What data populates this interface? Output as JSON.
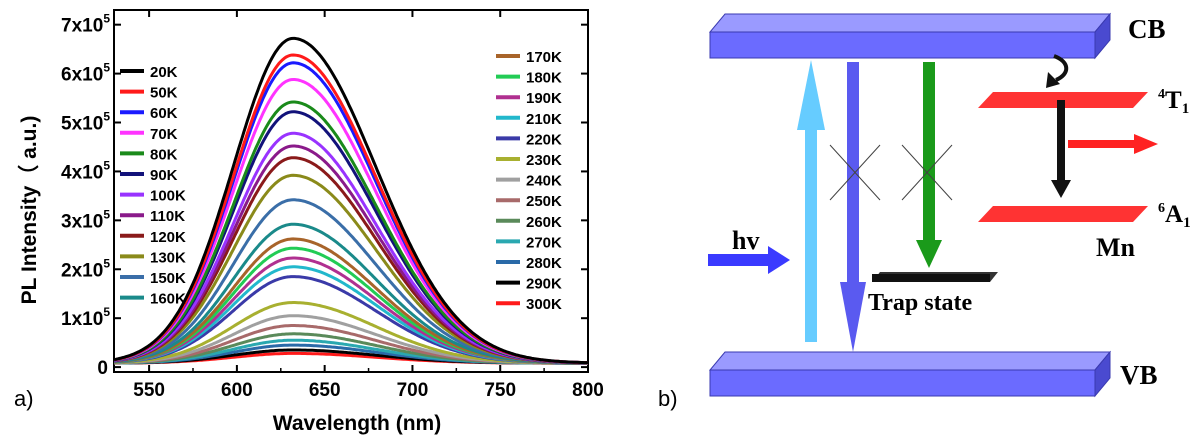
{
  "panel_a_label": "a)",
  "panel_b_label": "b)",
  "chart_data": {
    "type": "line",
    "xlabel": "Wavelength (nm)",
    "ylabel": "PL Intensity（ a.u.)",
    "xlim": [
      530,
      800
    ],
    "ylim": [
      -10000,
      730000
    ],
    "x_ticks": [
      550,
      600,
      650,
      700,
      750,
      800
    ],
    "y_ticks": [
      {
        "value": 0,
        "label": "0",
        "exp": ""
      },
      {
        "value": 100000,
        "label": "1x10",
        "exp": "5"
      },
      {
        "value": 200000,
        "label": "2x10",
        "exp": "5"
      },
      {
        "value": 300000,
        "label": "3x10",
        "exp": "5"
      },
      {
        "value": 400000,
        "label": "4x10",
        "exp": "5"
      },
      {
        "value": 500000,
        "label": "5x10",
        "exp": "5"
      },
      {
        "value": 600000,
        "label": "6x10",
        "exp": "5"
      },
      {
        "value": 700000,
        "label": "7x10",
        "exp": "5"
      }
    ],
    "peak_wavelength": 632,
    "baseline": 8000,
    "series": [
      {
        "name": "20K",
        "peak": 672000,
        "color": "#000000"
      },
      {
        "name": "50K",
        "peak": 638000,
        "color": "#ff1a1a"
      },
      {
        "name": "60K",
        "peak": 622000,
        "color": "#1a1aff"
      },
      {
        "name": "70K",
        "peak": 588000,
        "color": "#ff33ff"
      },
      {
        "name": "80K",
        "peak": 542000,
        "color": "#1a8a1a"
      },
      {
        "name": "90K",
        "peak": 522000,
        "color": "#12127a"
      },
      {
        "name": "100K",
        "peak": 478000,
        "color": "#9933ff"
      },
      {
        "name": "110K",
        "peak": 452000,
        "color": "#8a1a8a"
      },
      {
        "name": "120K",
        "peak": 428000,
        "color": "#8a1a1a"
      },
      {
        "name": "130K",
        "peak": 392000,
        "color": "#8a8a1a"
      },
      {
        "name": "150K",
        "peak": 342000,
        "color": "#3a6ea8"
      },
      {
        "name": "160K",
        "peak": 292000,
        "color": "#1a8a8a"
      },
      {
        "name": "170K",
        "peak": 262000,
        "color": "#a8642a"
      },
      {
        "name": "180K",
        "peak": 243000,
        "color": "#22cc55"
      },
      {
        "name": "190K",
        "peak": 223000,
        "color": "#b03090"
      },
      {
        "name": "210K",
        "peak": 205000,
        "color": "#22b8cc"
      },
      {
        "name": "220K",
        "peak": 185000,
        "color": "#3a3aa8"
      },
      {
        "name": "230K",
        "peak": 132000,
        "color": "#a8b030"
      },
      {
        "name": "240K",
        "peak": 105000,
        "color": "#a0a0a0"
      },
      {
        "name": "250K",
        "peak": 85000,
        "color": "#a86a6a"
      },
      {
        "name": "260K",
        "peak": 68000,
        "color": "#5a8a5a"
      },
      {
        "name": "270K",
        "peak": 55000,
        "color": "#2aa8b0"
      },
      {
        "name": "280K",
        "peak": 45000,
        "color": "#2a6aa8"
      },
      {
        "name": "290K",
        "peak": 35000,
        "color": "#000000"
      },
      {
        "name": "300K",
        "peak": 28000,
        "color": "#ff1a1a"
      }
    ]
  },
  "diagram": {
    "cb": "CB",
    "vb": "VB",
    "hv": "hv",
    "trap": "Trap state",
    "t1_sup": "4",
    "t1_main": "T",
    "t1_sub": "1",
    "a1_sup": "6",
    "a1_main": "A",
    "a1_sub": "1",
    "mn": "Mn",
    "colors": {
      "band": "#6b6bff",
      "excite": "#66ccff",
      "down": "#5a5af0",
      "green": "#1a9a1a",
      "mn_level": "#ff3333",
      "trap": "#111111"
    }
  }
}
